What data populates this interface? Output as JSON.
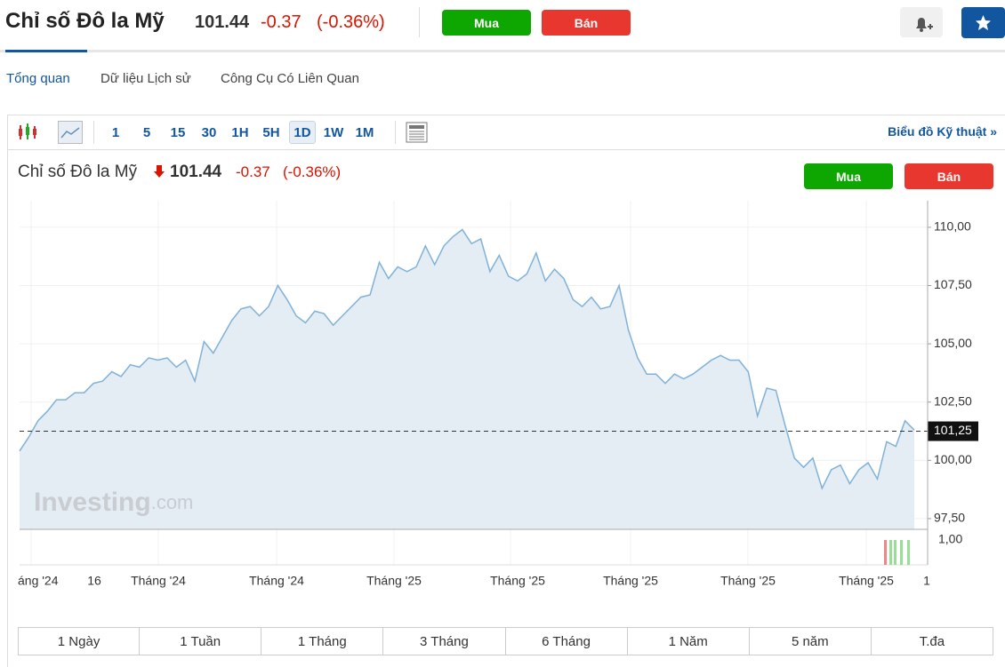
{
  "header": {
    "title": "Chỉ số Đô la Mỹ",
    "price": 101.44,
    "change": -0.37,
    "change_pct": "(-0.36%)",
    "buy": "Mua",
    "sell": "Bán"
  },
  "tabs": [
    "Tổng quan",
    "Dữ liệu Lịch sử",
    "Công Cụ Có Liên Quan"
  ],
  "toolbar": {
    "intervals": [
      "1",
      "5",
      "15",
      "30",
      "1H",
      "5H",
      "1D",
      "1W",
      "1M"
    ],
    "technical_chart": "Biểu đồ Kỹ thuật »"
  },
  "chart_data": {
    "type": "line",
    "title": "Chỉ số Đô la Mỹ",
    "price": 101.44,
    "change": -0.37,
    "change_pct": "(-0.36%)",
    "buy": "Mua",
    "sell": "Bán",
    "color": "#7fb2d9",
    "values": [
      100.4,
      101.0,
      101.7,
      102.1,
      102.6,
      102.6,
      102.9,
      102.9,
      103.3,
      103.4,
      103.8,
      103.6,
      104.1,
      104.0,
      104.4,
      104.3,
      104.4,
      104.0,
      104.3,
      103.4,
      105.1,
      104.6,
      105.3,
      106.0,
      106.5,
      106.6,
      106.2,
      106.6,
      107.5,
      106.9,
      106.2,
      105.9,
      106.4,
      106.3,
      105.8,
      106.2,
      106.6,
      107.0,
      107.1,
      108.5,
      107.8,
      108.3,
      108.1,
      108.3,
      109.2,
      108.4,
      109.2,
      109.6,
      109.9,
      109.3,
      109.5,
      108.1,
      108.8,
      107.9,
      107.7,
      108.0,
      108.9,
      107.7,
      108.2,
      107.8,
      106.9,
      106.6,
      107.0,
      106.5,
      106.6,
      107.5,
      105.6,
      104.4,
      103.7,
      103.7,
      103.3,
      103.7,
      103.5,
      103.7,
      104.0,
      104.3,
      104.5,
      104.3,
      104.3,
      103.8,
      101.9,
      103.1,
      103.0,
      101.5,
      100.1,
      99.7,
      100.1,
      98.8,
      99.6,
      99.8,
      99.0,
      99.6,
      99.9,
      99.2,
      100.8,
      100.6,
      101.7,
      101.3
    ],
    "ylim": [
      97.04,
      111.14
    ],
    "yticks": [
      {
        "value": 97.5,
        "label": "97,50"
      },
      {
        "value": 100,
        "label": "100,00"
      },
      {
        "value": 102.5,
        "label": "102,50"
      },
      {
        "value": 105,
        "label": "105,00"
      },
      {
        "value": 107.5,
        "label": "107,50"
      },
      {
        "value": 110,
        "label": "110,00"
      }
    ],
    "current_value": {
      "value": 101.25,
      "label": "101,25"
    },
    "x_labels": [
      "áng '24",
      "16",
      "Tháng '24",
      "Tháng '24",
      "Tháng '25",
      "Tháng '25",
      "Tháng '25",
      "Tháng '25",
      "Tháng '25",
      "1"
    ],
    "volume_label": "1,00",
    "watermark": [
      "Investing",
      ".com"
    ],
    "grid": true
  },
  "ranges": [
    "1 Ngày",
    "1 Tuần",
    "1 Tháng",
    "3 Tháng",
    "6 Tháng",
    "1 Năm",
    "5 năm",
    "T.đa"
  ]
}
